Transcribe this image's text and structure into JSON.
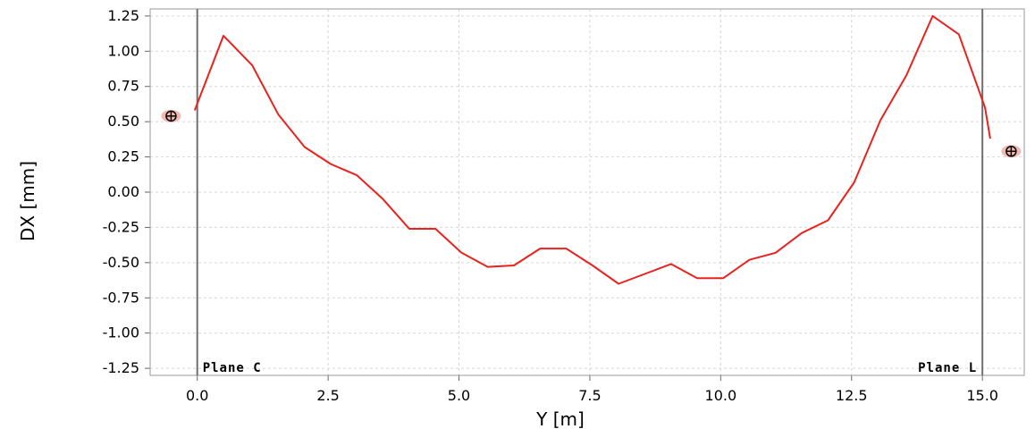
{
  "chart_data": {
    "type": "line",
    "title": "",
    "xlabel": "Y [m]",
    "ylabel": "DX [mm]",
    "xlim": [
      -0.9,
      15.8
    ],
    "ylim": [
      -1.3,
      1.3
    ],
    "xticks": [
      0.0,
      2.5,
      5.0,
      7.5,
      10.0,
      12.5,
      15.0
    ],
    "xtick_labels": [
      "0.0",
      "2.5",
      "5.0",
      "7.5",
      "10.0",
      "12.5",
      "15.0"
    ],
    "yticks": [
      1.25,
      1.0,
      0.75,
      0.5,
      0.25,
      0.0,
      -0.25,
      -0.5,
      -0.75,
      -1.0,
      -1.25
    ],
    "ytick_labels": [
      "1.25",
      "1.00",
      "0.75",
      "0.50",
      "0.25",
      "0.00",
      "-0.25",
      "-0.50",
      "-0.75",
      "-1.00",
      "-1.25"
    ],
    "grid": true,
    "series": [
      {
        "color": "#e8231f",
        "x": [
          -0.05,
          0.5,
          1.05,
          1.55,
          2.05,
          2.55,
          3.05,
          3.55,
          4.05,
          4.55,
          5.05,
          5.55,
          6.05,
          6.55,
          7.05,
          7.55,
          8.05,
          8.55,
          9.05,
          9.55,
          10.05,
          10.55,
          11.05,
          11.55,
          12.05,
          12.55,
          13.05,
          13.55,
          14.05,
          14.55,
          15.05,
          15.15
        ],
        "y": [
          0.58,
          1.11,
          0.9,
          0.55,
          0.32,
          0.2,
          0.12,
          -0.05,
          -0.26,
          -0.26,
          -0.43,
          -0.53,
          -0.52,
          -0.4,
          -0.4,
          -0.52,
          -0.65,
          -0.58,
          -0.51,
          -0.61,
          -0.61,
          -0.48,
          -0.43,
          -0.29,
          -0.2,
          0.07,
          0.51,
          0.83,
          1.25,
          1.12,
          0.6,
          0.38
        ]
      }
    ],
    "vertical_lines": [
      {
        "x": 0.0,
        "label": "Plane C"
      },
      {
        "x": 15.0,
        "label": "Plane L"
      }
    ],
    "markers": [
      {
        "x": -0.5,
        "y": 0.54
      },
      {
        "x": 15.55,
        "y": 0.29
      }
    ]
  }
}
